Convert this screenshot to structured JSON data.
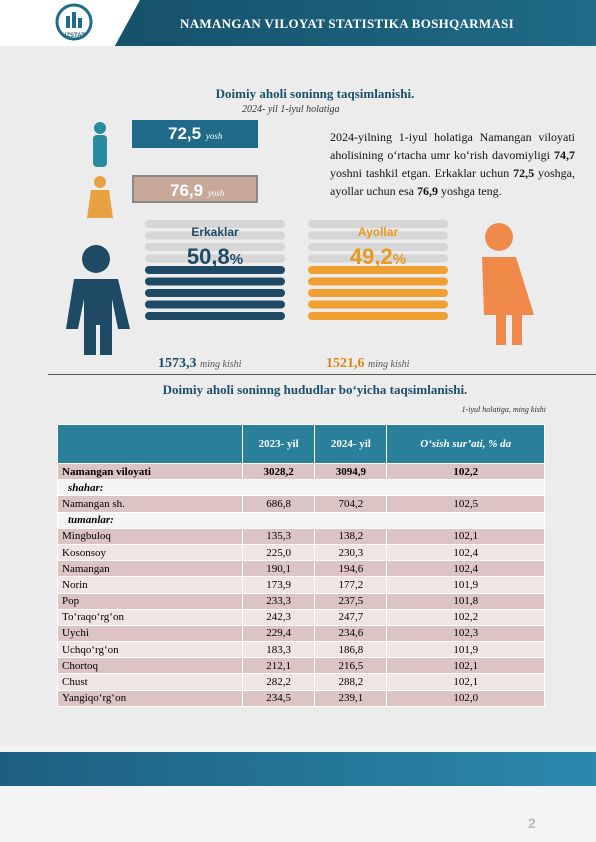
{
  "header": {
    "logo": "UZSTAT",
    "title": "NAMANGAN VILOYAT STATISTIKA BOSHQARMASI"
  },
  "section1": {
    "title": "Doimiy aholi soninng taqsimlanishi.",
    "subtitle": "2024- yil 1-iyul holatiga",
    "life": {
      "male": "72,5",
      "female": "76,9",
      "unit": "yosh"
    },
    "paragraph": [
      "2024-yilning 1-iyul holatiga Namangan viloyati aholisining o‘rtacha umr ko‘rish davomiyligi ",
      "74,7",
      " yoshni tashkil etgan. Erkaklar uchun ",
      "72,5",
      " yoshga, ayollar uchun esa ",
      "76,9",
      " yoshga teng."
    ],
    "male": {
      "label": "Erkaklar",
      "percent": "50,8",
      "percent_unit": "%",
      "count": "1573,3",
      "count_unit": "ming kishi"
    },
    "female": {
      "label": "Ayollar",
      "percent": "49,2",
      "percent_unit": "%",
      "count": "1521,6",
      "count_unit": "ming kishi"
    }
  },
  "section2": {
    "title": "Doimiy aholi soninng hududlar bo‘yicha taqsimlanishi.",
    "note": "1-iyul holatiga, ming kishi"
  },
  "table": {
    "header": [
      "2023- yil",
      "2024- yil",
      "O‘sish sur’ati, % da"
    ],
    "rows": [
      [
        "Namangan viloyati",
        "3028,2",
        "3094,9",
        "102,2"
      ],
      [
        "shahar:"
      ],
      [
        "Namangan sh.",
        "686,8",
        "704,2",
        "102,5"
      ],
      [
        "tumanlar:"
      ],
      [
        "Mingbuloq",
        "135,3",
        "138,2",
        "102,1"
      ],
      [
        "Kosonsoy",
        "225,0",
        "230,3",
        "102,4"
      ],
      [
        "Namangan",
        "190,1",
        "194,6",
        "102,4"
      ],
      [
        "Norin",
        "173,9",
        "177,2",
        "101,9"
      ],
      [
        "Pop",
        "233,3",
        "237,5",
        "101,8"
      ],
      [
        "To‘raqo‘rg‘on",
        "242,3",
        "247,7",
        "102,2"
      ],
      [
        "Uychi",
        "229,4",
        "234,6",
        "102,3"
      ],
      [
        "Uchqo‘rg‘on",
        "183,3",
        "186,8",
        "101,9"
      ],
      [
        "Chortoq",
        "212,1",
        "216,5",
        "102,1"
      ],
      [
        "Chust",
        "282,2",
        "288,2",
        "102,1"
      ],
      [
        "Yangiqo‘rg‘on",
        "234,5",
        "239,1",
        "102,0"
      ]
    ]
  },
  "page_number": "2"
}
